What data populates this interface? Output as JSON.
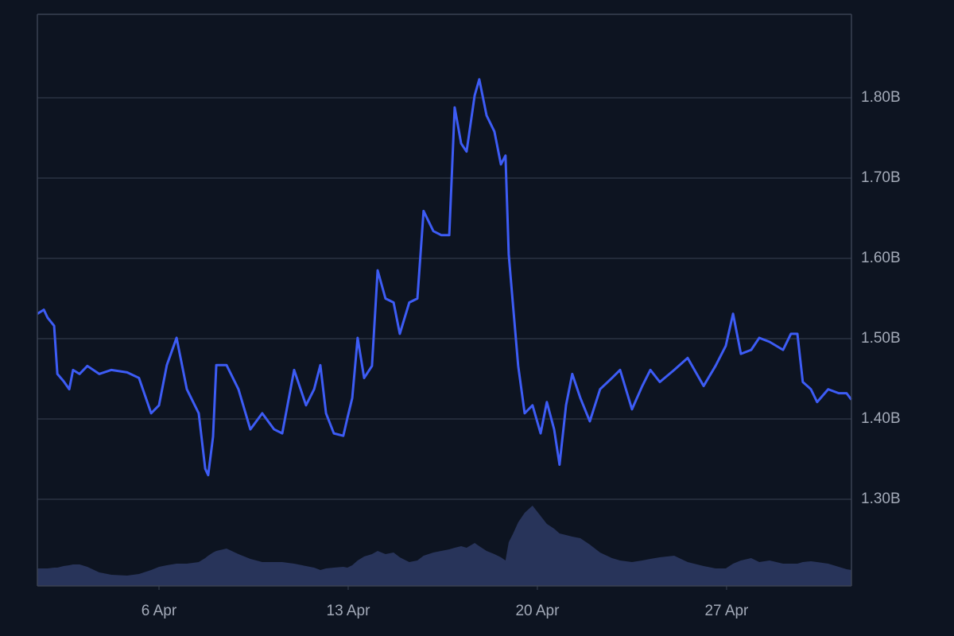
{
  "chart_data": {
    "type": "line",
    "x": [
      1.5,
      1.74,
      1.88,
      2.12,
      2.24,
      2.47,
      2.68,
      2.82,
      3.06,
      3.35,
      3.79,
      4.24,
      4.82,
      5.26,
      5.71,
      6.0,
      6.29,
      6.65,
      7.03,
      7.47,
      7.71,
      7.82,
      8.0,
      8.12,
      8.5,
      8.94,
      9.38,
      9.82,
      10.26,
      10.56,
      11.0,
      11.44,
      11.74,
      11.97,
      12.18,
      12.47,
      12.82,
      12.97,
      13.15,
      13.35,
      13.59,
      13.88,
      14.09,
      14.38,
      14.68,
      14.91,
      15.26,
      15.56,
      15.79,
      16.15,
      16.44,
      16.74,
      16.94,
      17.18,
      17.38,
      17.68,
      17.85,
      18.12,
      18.41,
      18.65,
      18.82,
      18.94,
      19.09,
      19.29,
      19.53,
      19.82,
      20.12,
      20.35,
      20.62,
      20.82,
      21.06,
      21.29,
      21.59,
      21.94,
      22.32,
      22.76,
      23.06,
      23.5,
      23.88,
      24.18,
      24.53,
      25.06,
      25.56,
      26.15,
      26.59,
      26.97,
      27.24,
      27.53,
      27.91,
      28.21,
      28.59,
      29.09,
      29.38,
      29.62,
      29.82,
      30.12,
      30.35,
      30.76,
      31.15,
      31.44,
      31.62
    ],
    "values": [
      1.531,
      1.536,
      1.526,
      1.516,
      1.456,
      1.447,
      1.437,
      1.461,
      1.456,
      1.466,
      1.456,
      1.461,
      1.458,
      1.451,
      1.407,
      1.417,
      1.467,
      1.501,
      1.437,
      1.407,
      1.338,
      1.33,
      1.378,
      1.467,
      1.467,
      1.437,
      1.387,
      1.407,
      1.387,
      1.382,
      1.461,
      1.417,
      1.437,
      1.467,
      1.407,
      1.382,
      1.379,
      1.401,
      1.426,
      1.501,
      1.451,
      1.466,
      1.585,
      1.55,
      1.545,
      1.506,
      1.545,
      1.55,
      1.659,
      1.634,
      1.629,
      1.629,
      1.788,
      1.743,
      1.733,
      1.803,
      1.823,
      1.778,
      1.758,
      1.717,
      1.728,
      1.605,
      1.545,
      1.466,
      1.407,
      1.417,
      1.382,
      1.421,
      1.387,
      1.343,
      1.417,
      1.456,
      1.426,
      1.397,
      1.437,
      1.451,
      1.461,
      1.412,
      1.441,
      1.461,
      1.446,
      1.461,
      1.476,
      1.441,
      1.466,
      1.491,
      1.531,
      1.481,
      1.486,
      1.501,
      1.496,
      1.486,
      1.506,
      1.506,
      1.446,
      1.437,
      1.421,
      1.437,
      1.432,
      1.432,
      1.424
    ],
    "color": "#3d5cf5",
    "volume": [
      22,
      22,
      22,
      23,
      23,
      25,
      26,
      27,
      27,
      24,
      17,
      14,
      13,
      15,
      20,
      24,
      26,
      28,
      28,
      30,
      35,
      38,
      42,
      44,
      47,
      40,
      34,
      30,
      30,
      30,
      28,
      25,
      23,
      20,
      22,
      23,
      24,
      23,
      26,
      32,
      37,
      40,
      44,
      40,
      42,
      36,
      30,
      32,
      38,
      42,
      44,
      46,
      48,
      50,
      48,
      54,
      50,
      44,
      40,
      36,
      32,
      55,
      65,
      80,
      92,
      101,
      88,
      78,
      72,
      66,
      64,
      62,
      60,
      52,
      42,
      35,
      32,
      30,
      32,
      34,
      36,
      38,
      30,
      25,
      22,
      22,
      28,
      32,
      35,
      30,
      32,
      28,
      28,
      28,
      30,
      31,
      30,
      28,
      24,
      21,
      20
    ],
    "volume_color": "#28345a",
    "xlim": [
      1.5,
      31.62
    ],
    "xticks": [
      {
        "value": 6,
        "label": "6 Apr"
      },
      {
        "value": 13,
        "label": "13 Apr"
      },
      {
        "value": 20,
        "label": "20 Apr"
      },
      {
        "value": 27,
        "label": "27 Apr"
      }
    ],
    "ylim": [
      1.192,
      1.904
    ],
    "yticks": [
      {
        "value": 1.3,
        "label": "1.30B"
      },
      {
        "value": 1.4,
        "label": "1.40B"
      },
      {
        "value": 1.5,
        "label": "1.50B"
      },
      {
        "value": 1.6,
        "label": "1.60B"
      },
      {
        "value": 1.7,
        "label": "1.70B"
      },
      {
        "value": 1.8,
        "label": "1.80B"
      }
    ],
    "grid": true
  }
}
